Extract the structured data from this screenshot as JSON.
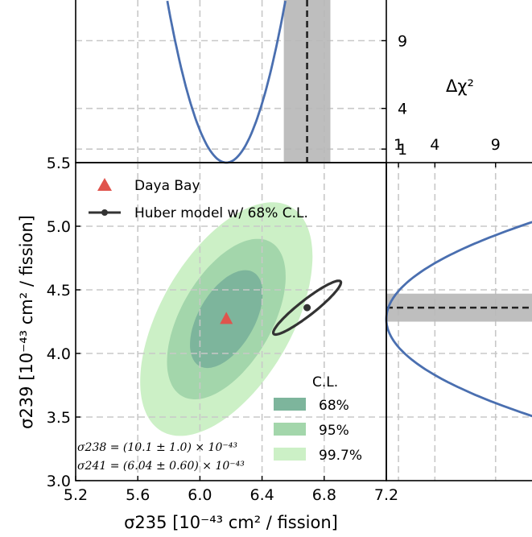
{
  "chart_data": [
    {
      "id": "main",
      "type": "contour",
      "xlabel": "σ235 [10⁻⁴³ cm² / fission]",
      "ylabel": "σ239 [10⁻⁴³ cm² / fission]",
      "xlim": [
        5.2,
        7.2
      ],
      "ylim": [
        3.0,
        5.5
      ],
      "xticks": [
        "5.2",
        "5.6",
        "6.0",
        "6.4",
        "6.8",
        "7.2"
      ],
      "yticks": [
        "3.0",
        "3.5",
        "4.0",
        "4.5",
        "5.0",
        "5.5"
      ],
      "grid": true,
      "best_fit": {
        "label": "Daya Bay",
        "x": 6.17,
        "y": 4.27,
        "color": "#e0544d"
      },
      "contours": [
        {
          "label": "99.7%",
          "cx": 6.17,
          "cy": 4.27,
          "a": 0.67,
          "b": 0.34,
          "angle": 60,
          "color": "#ccf0c6"
        },
        {
          "label": "95%",
          "cx": 6.17,
          "cy": 4.27,
          "a": 0.46,
          "b": 0.235,
          "angle": 60,
          "color": "#a3d6ab"
        },
        {
          "label": "68%",
          "cx": 6.17,
          "cy": 4.27,
          "a": 0.28,
          "b": 0.145,
          "angle": 60,
          "color": "#7db59c"
        }
      ],
      "model": {
        "label": "Huber model w/ 68% C.L.",
        "x": 6.69,
        "y": 4.36,
        "a": 0.22,
        "b": 0.04,
        "angle": 38,
        "color": "#333333"
      },
      "legend_title": "C.L.",
      "legend_placement": "lower-right",
      "annotations": [
        "σ238 = (10.1 ± 1.0) × 10⁻⁴³",
        "σ241 = (6.04 ± 0.60) × 10⁻⁴³"
      ]
    },
    {
      "id": "top",
      "type": "line",
      "ylabel": "Δχ²",
      "xlim": [
        5.2,
        7.2
      ],
      "ylim": [
        0,
        12
      ],
      "yticks": [
        "1",
        "4",
        "9"
      ],
      "grid": true,
      "curve": {
        "min_x": 6.17,
        "sigma": 0.11,
        "color": "#4a6fb0"
      },
      "model_value": {
        "x": 6.69,
        "band": [
          6.54,
          6.84
        ]
      }
    },
    {
      "id": "right",
      "type": "line",
      "xlim": [
        0,
        12
      ],
      "ylim": [
        3.0,
        5.5
      ],
      "xticks": [
        "1",
        "4",
        "9"
      ],
      "grid": true,
      "curve": {
        "min_y": 4.27,
        "sigma": 0.22,
        "color": "#4a6fb0"
      },
      "model_value": {
        "y": 4.36,
        "band": [
          4.25,
          4.47
        ]
      }
    }
  ]
}
